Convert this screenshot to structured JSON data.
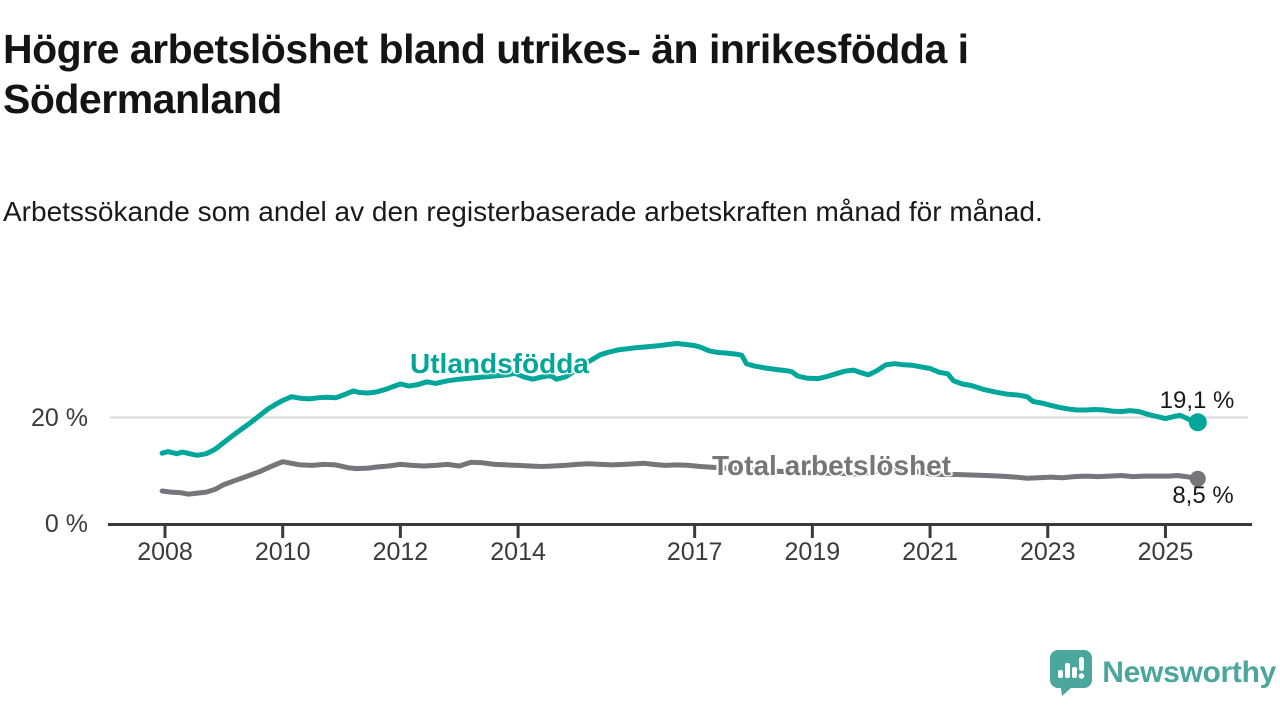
{
  "chart_data": {
    "type": "line",
    "title": "Högre arbetslöshet bland utrikes- än inrikesfödda i Södermanland",
    "subtitle": "Arbetssökande som andel av den registerbaserade arbetskraften månad för månad.",
    "grid": "single-horizontal-gridline-at-20",
    "legend_position": "inline-series-labels",
    "x_axis": {
      "tick_labels": [
        "2008",
        "2010",
        "2012",
        "2014",
        "2017",
        "2019",
        "2021",
        "2023",
        "2025"
      ],
      "tick_years": [
        2008,
        2010,
        2012,
        2014,
        2017,
        2019,
        2021,
        2023,
        2025
      ],
      "range_years": [
        2007.9,
        2026.4
      ]
    },
    "y_axis": {
      "tick_labels": [
        "20 %",
        "0 %"
      ],
      "tick_values": [
        20,
        0
      ],
      "unit": "%",
      "range": [
        0,
        36
      ],
      "gridline_value": 20
    },
    "series": [
      {
        "name": "Utlandsfödda",
        "color": "#00a69a",
        "end_label": "19,1 %",
        "end_value": 19.1,
        "points": [
          [
            2007.95,
            13.3
          ],
          [
            2008.05,
            13.6
          ],
          [
            2008.2,
            13.2
          ],
          [
            2008.3,
            13.5
          ],
          [
            2008.45,
            13.1
          ],
          [
            2008.55,
            12.9
          ],
          [
            2008.7,
            13.2
          ],
          [
            2008.85,
            14.0
          ],
          [
            2009.0,
            15.3
          ],
          [
            2009.15,
            16.6
          ],
          [
            2009.3,
            17.8
          ],
          [
            2009.45,
            19.0
          ],
          [
            2009.6,
            20.3
          ],
          [
            2009.75,
            21.6
          ],
          [
            2009.9,
            22.6
          ],
          [
            2010.0,
            23.2
          ],
          [
            2010.15,
            23.9
          ],
          [
            2010.3,
            23.6
          ],
          [
            2010.45,
            23.5
          ],
          [
            2010.6,
            23.7
          ],
          [
            2010.75,
            23.8
          ],
          [
            2010.9,
            23.7
          ],
          [
            2011.05,
            24.3
          ],
          [
            2011.2,
            25.0
          ],
          [
            2011.3,
            24.7
          ],
          [
            2011.45,
            24.6
          ],
          [
            2011.6,
            24.8
          ],
          [
            2011.75,
            25.3
          ],
          [
            2011.9,
            25.9
          ],
          [
            2012.0,
            26.3
          ],
          [
            2012.15,
            25.9
          ],
          [
            2012.3,
            26.2
          ],
          [
            2012.45,
            26.7
          ],
          [
            2012.6,
            26.4
          ],
          [
            2012.8,
            26.9
          ],
          [
            2013.0,
            27.2
          ],
          [
            2013.2,
            27.4
          ],
          [
            2013.5,
            27.7
          ],
          [
            2013.8,
            28.0
          ],
          [
            2013.95,
            28.3
          ],
          [
            2014.1,
            27.6
          ],
          [
            2014.25,
            27.2
          ],
          [
            2014.4,
            27.6
          ],
          [
            2014.55,
            27.9
          ],
          [
            2014.65,
            27.2
          ],
          [
            2014.8,
            27.6
          ],
          [
            2015.0,
            29.0
          ],
          [
            2015.2,
            30.5
          ],
          [
            2015.4,
            31.8
          ],
          [
            2015.55,
            32.3
          ],
          [
            2015.7,
            32.7
          ],
          [
            2015.85,
            32.9
          ],
          [
            2016.0,
            33.1
          ],
          [
            2016.2,
            33.3
          ],
          [
            2016.4,
            33.5
          ],
          [
            2016.55,
            33.7
          ],
          [
            2016.7,
            33.9
          ],
          [
            2016.85,
            33.7
          ],
          [
            2017.0,
            33.5
          ],
          [
            2017.1,
            33.2
          ],
          [
            2017.25,
            32.5
          ],
          [
            2017.4,
            32.2
          ],
          [
            2017.55,
            32.1
          ],
          [
            2017.7,
            31.9
          ],
          [
            2017.8,
            31.7
          ],
          [
            2017.88,
            30.1
          ],
          [
            2018.0,
            29.7
          ],
          [
            2018.2,
            29.3
          ],
          [
            2018.4,
            29.0
          ],
          [
            2018.55,
            28.8
          ],
          [
            2018.65,
            28.6
          ],
          [
            2018.75,
            27.8
          ],
          [
            2018.9,
            27.4
          ],
          [
            2019.1,
            27.3
          ],
          [
            2019.25,
            27.7
          ],
          [
            2019.4,
            28.2
          ],
          [
            2019.55,
            28.7
          ],
          [
            2019.7,
            28.9
          ],
          [
            2019.8,
            28.5
          ],
          [
            2019.95,
            28.0
          ],
          [
            2020.1,
            28.8
          ],
          [
            2020.25,
            29.9
          ],
          [
            2020.4,
            30.1
          ],
          [
            2020.55,
            29.9
          ],
          [
            2020.7,
            29.8
          ],
          [
            2020.85,
            29.5
          ],
          [
            2021.0,
            29.2
          ],
          [
            2021.15,
            28.5
          ],
          [
            2021.3,
            28.2
          ],
          [
            2021.4,
            26.9
          ],
          [
            2021.55,
            26.3
          ],
          [
            2021.7,
            26.0
          ],
          [
            2021.9,
            25.3
          ],
          [
            2022.1,
            24.8
          ],
          [
            2022.3,
            24.4
          ],
          [
            2022.5,
            24.2
          ],
          [
            2022.65,
            23.9
          ],
          [
            2022.75,
            23.0
          ],
          [
            2022.9,
            22.7
          ],
          [
            2023.05,
            22.3
          ],
          [
            2023.2,
            21.9
          ],
          [
            2023.35,
            21.6
          ],
          [
            2023.5,
            21.4
          ],
          [
            2023.65,
            21.4
          ],
          [
            2023.8,
            21.5
          ],
          [
            2023.95,
            21.4
          ],
          [
            2024.1,
            21.2
          ],
          [
            2024.25,
            21.1
          ],
          [
            2024.4,
            21.3
          ],
          [
            2024.55,
            21.1
          ],
          [
            2024.7,
            20.6
          ],
          [
            2024.85,
            20.2
          ],
          [
            2025.0,
            19.8
          ],
          [
            2025.15,
            20.2
          ],
          [
            2025.25,
            20.4
          ],
          [
            2025.35,
            19.9
          ],
          [
            2025.45,
            19.4
          ],
          [
            2025.55,
            19.1
          ]
        ]
      },
      {
        "name": "Total arbetslöshet",
        "color": "#76767a",
        "end_label": "8,5 %",
        "end_value": 8.5,
        "points": [
          [
            2007.95,
            6.2
          ],
          [
            2008.1,
            6.0
          ],
          [
            2008.25,
            5.9
          ],
          [
            2008.4,
            5.6
          ],
          [
            2008.55,
            5.8
          ],
          [
            2008.7,
            6.0
          ],
          [
            2008.85,
            6.5
          ],
          [
            2009.0,
            7.4
          ],
          [
            2009.2,
            8.2
          ],
          [
            2009.4,
            9.0
          ],
          [
            2009.6,
            9.8
          ],
          [
            2009.8,
            10.8
          ],
          [
            2010.0,
            11.7
          ],
          [
            2010.15,
            11.4
          ],
          [
            2010.3,
            11.1
          ],
          [
            2010.5,
            11.0
          ],
          [
            2010.7,
            11.2
          ],
          [
            2010.9,
            11.1
          ],
          [
            2011.1,
            10.6
          ],
          [
            2011.25,
            10.4
          ],
          [
            2011.45,
            10.5
          ],
          [
            2011.6,
            10.7
          ],
          [
            2011.8,
            10.9
          ],
          [
            2012.0,
            11.2
          ],
          [
            2012.2,
            11.0
          ],
          [
            2012.4,
            10.9
          ],
          [
            2012.6,
            11.0
          ],
          [
            2012.8,
            11.2
          ],
          [
            2013.0,
            10.9
          ],
          [
            2013.2,
            11.6
          ],
          [
            2013.4,
            11.5
          ],
          [
            2013.6,
            11.2
          ],
          [
            2013.8,
            11.1
          ],
          [
            2014.0,
            11.0
          ],
          [
            2014.2,
            10.9
          ],
          [
            2014.4,
            10.8
          ],
          [
            2014.6,
            10.9
          ],
          [
            2014.8,
            11.0
          ],
          [
            2015.0,
            11.2
          ],
          [
            2015.2,
            11.3
          ],
          [
            2015.4,
            11.2
          ],
          [
            2015.6,
            11.1
          ],
          [
            2015.8,
            11.2
          ],
          [
            2016.0,
            11.3
          ],
          [
            2016.15,
            11.4
          ],
          [
            2016.3,
            11.2
          ],
          [
            2016.5,
            11.0
          ],
          [
            2016.7,
            11.1
          ],
          [
            2016.9,
            11.0
          ],
          [
            2017.1,
            10.8
          ],
          [
            2017.4,
            10.6
          ],
          [
            2017.8,
            10.3
          ],
          [
            2018.2,
            10.0
          ],
          [
            2018.6,
            9.8
          ],
          [
            2019.0,
            9.6
          ],
          [
            2019.4,
            9.5
          ],
          [
            2019.8,
            9.4
          ],
          [
            2020.1,
            9.9
          ],
          [
            2020.35,
            10.4
          ],
          [
            2020.6,
            10.2
          ],
          [
            2020.8,
            9.8
          ],
          [
            2021.0,
            9.4
          ],
          [
            2021.2,
            9.3
          ],
          [
            2021.45,
            9.3
          ],
          [
            2021.7,
            9.2
          ],
          [
            2021.95,
            9.1
          ],
          [
            2022.2,
            9.0
          ],
          [
            2022.45,
            8.8
          ],
          [
            2022.65,
            8.6
          ],
          [
            2022.85,
            8.7
          ],
          [
            2023.05,
            8.8
          ],
          [
            2023.25,
            8.7
          ],
          [
            2023.45,
            8.9
          ],
          [
            2023.65,
            9.0
          ],
          [
            2023.85,
            8.9
          ],
          [
            2024.05,
            9.0
          ],
          [
            2024.25,
            9.1
          ],
          [
            2024.45,
            8.9
          ],
          [
            2024.65,
            9.0
          ],
          [
            2024.85,
            9.0
          ],
          [
            2025.05,
            9.0
          ],
          [
            2025.2,
            9.1
          ],
          [
            2025.35,
            8.9
          ],
          [
            2025.45,
            8.7
          ],
          [
            2025.55,
            8.5
          ]
        ]
      }
    ]
  },
  "footer": {
    "brand": "Newsworthy",
    "logo_color": "#4ba69e"
  }
}
